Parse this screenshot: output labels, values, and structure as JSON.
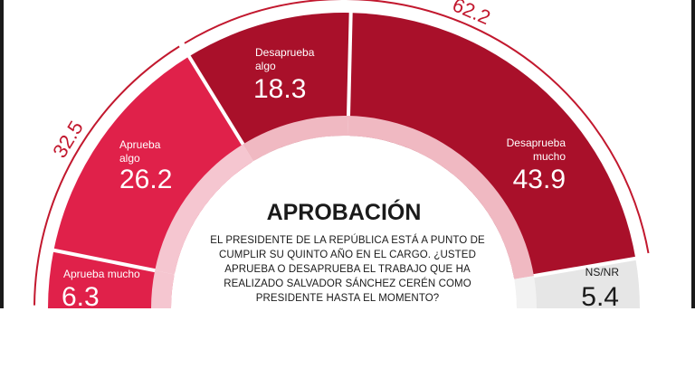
{
  "chart_data": {
    "type": "pie",
    "title": "APROBACIÓN",
    "subtitle": "EL PRESIDENTE DE LA REPÚBLICA ESTÁ A PUNTO DE CUMPLIR SU QUINTO AÑO EN EL CARGO. ¿USTED APRUEBA O  DESAPRUEBA EL TRABAJO QUE HA REALIZADO SALVADOR SÁNCHEZ CERÉN COMO PRESIDENTE HASTA EL MOMENTO?",
    "categories": [
      "Aprueba mucho",
      "Aprueba algo",
      "Desaprueba algo",
      "Desaprueba mucho",
      "NS/NR"
    ],
    "values": [
      6.3,
      26.2,
      18.3,
      43.9,
      5.4
    ],
    "value_labels": [
      "6.3",
      "26.2",
      "18.3",
      "43.9",
      "5.4"
    ],
    "totals": [
      {
        "label": "32.5",
        "value": 32.5,
        "segments": [
          0,
          1
        ]
      },
      {
        "label": "62.2",
        "value": 62.2,
        "segments": [
          2,
          3
        ]
      }
    ],
    "colors": [
      "#e0214a",
      "#e0214a",
      "#a9102a",
      "#a9102a",
      "#e6e6e6"
    ]
  }
}
